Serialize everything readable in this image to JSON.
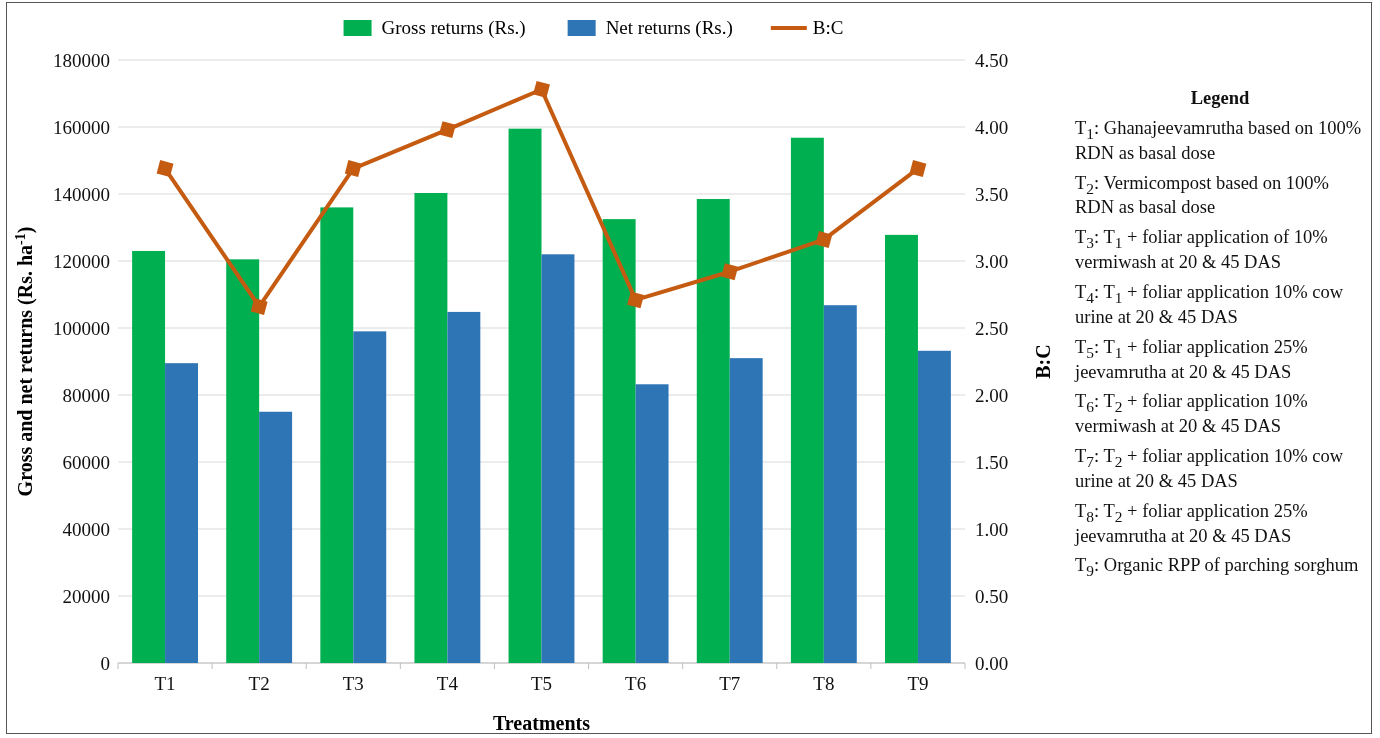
{
  "chart_data": {
    "type": "bar",
    "xlabel": "Treatments",
    "ylabel": "Gross and net returns (Rs. ha$^{-1}$)",
    "y2label": "B:C",
    "categories": [
      "T1",
      "T2",
      "T3",
      "T4",
      "T5",
      "T6",
      "T7",
      "T8",
      "T9"
    ],
    "series": [
      {
        "name": "Gross returns (Rs.)",
        "color": "#00b050",
        "values": [
          123000,
          120500,
          136000,
          140300,
          159500,
          132500,
          138500,
          156800,
          127800
        ]
      },
      {
        "name": "Net returns (Rs.)",
        "color": "#2e75b6",
        "values": [
          89500,
          75000,
          99000,
          104800,
          122000,
          83200,
          91000,
          106800,
          93200
        ]
      },
      {
        "name": "B:C",
        "type": "line",
        "axis": "y2",
        "color": "#c55a11",
        "marker": "diamond",
        "values": [
          3.69,
          2.66,
          3.69,
          3.98,
          4.28,
          2.71,
          2.92,
          3.16,
          3.69
        ]
      }
    ],
    "ylim": [
      0,
      180000
    ],
    "yticks": [
      0,
      20000,
      40000,
      60000,
      80000,
      100000,
      120000,
      140000,
      160000,
      180000
    ],
    "y2lim": [
      0,
      4.5
    ],
    "y2ticks": [
      {
        "value": 0,
        "label": "0.00"
      },
      {
        "value": 0.5,
        "label": "0.50"
      },
      {
        "value": 1,
        "label": "1.00"
      },
      {
        "value": 1.5,
        "label": "1.50"
      },
      {
        "value": 2,
        "label": "2.00"
      },
      {
        "value": 2.5,
        "label": "2.50"
      },
      {
        "value": 3,
        "label": "3.00"
      },
      {
        "value": 3.5,
        "label": "3.50"
      },
      {
        "value": 4,
        "label": "4.00"
      },
      {
        "value": 4.5,
        "label": "4.50"
      }
    ],
    "grid": "y",
    "legend": "top",
    "annotations": [
      "Legend",
      "T$_{1}$: Ghanajeevamrutha based on 100% RDN as basal dose",
      "T$_{2}$: Vermicompost based on 100% RDN as basal dose",
      "T$_{3}$: T$_{1}$ + foliar application of 10% vermiwash at 20 & 45 DAS",
      "T$_{4}$: T$_{1}$ + foliar application 10% cow urine at 20 & 45 DAS",
      "T$_{5}$: T$_{1}$ + foliar application 25% jeevamrutha at 20 & 45 DAS",
      "T$_{6}$: T$_{2}$ + foliar application 10% vermiwash at 20 & 45 DAS",
      "T$_{7}$: T$_{2}$ + foliar application 10% cow urine at 20 & 45 DAS",
      "T$_{8}$: T$_{2}$ + foliar application 25% jeevamrutha at 20 & 45 DAS",
      "T$_{9}$: Organic RPP of parching sorghum"
    ]
  }
}
